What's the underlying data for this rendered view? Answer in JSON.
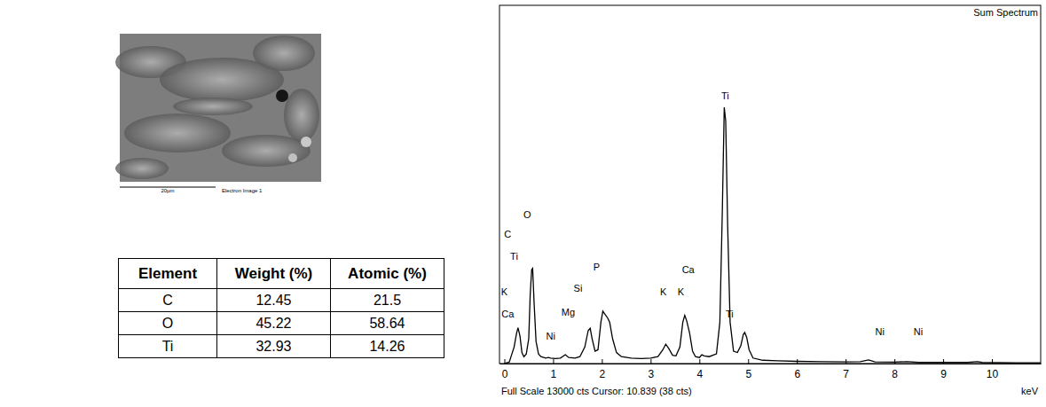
{
  "image": {
    "scale_bar": "20µm",
    "caption": "Electron Image 1"
  },
  "table": {
    "header": [
      "Element",
      "Weight (%)",
      "Atomic (%)"
    ],
    "rows": [
      [
        "C",
        "12.45",
        "21.5"
      ],
      [
        "O",
        "45.22",
        "58.64"
      ],
      [
        "Ti",
        "32.93",
        "14.26"
      ]
    ]
  },
  "chart_data": {
    "type": "line",
    "title": "Sum Spectrum",
    "xlabel": "keV",
    "caption": "Full Scale 13000 cts Cursor: 10.839 (38 cts)",
    "color": "#000000",
    "tick_labels": "x",
    "grid": false,
    "xlim": [
      -0.1,
      11.0
    ],
    "xticks": [
      0,
      1,
      2,
      3,
      4,
      5,
      6,
      7,
      8,
      9,
      10
    ],
    "ylim": [
      0,
      13000
    ],
    "x": [
      0.0,
      0.1,
      0.2,
      0.25,
      0.28,
      0.32,
      0.36,
      0.4,
      0.45,
      0.5,
      0.53,
      0.56,
      0.58,
      0.61,
      0.65,
      0.7,
      0.75,
      0.85,
      0.9,
      0.95,
      1.05,
      1.15,
      1.25,
      1.32,
      1.45,
      1.55,
      1.65,
      1.72,
      1.76,
      1.8,
      1.86,
      1.92,
      1.98,
      2.02,
      2.06,
      2.12,
      2.16,
      2.22,
      2.3,
      2.4,
      2.6,
      2.8,
      3.0,
      3.15,
      3.25,
      3.31,
      3.37,
      3.45,
      3.52,
      3.6,
      3.66,
      3.7,
      3.74,
      3.8,
      3.86,
      3.92,
      4.0,
      4.05,
      4.1,
      4.2,
      4.35,
      4.42,
      4.47,
      4.51,
      4.54,
      4.58,
      4.63,
      4.7,
      4.78,
      4.85,
      4.9,
      4.93,
      4.97,
      5.02,
      5.1,
      5.3,
      5.6,
      6.0,
      6.5,
      7.0,
      7.3,
      7.47,
      7.6,
      8.0,
      8.26,
      8.5,
      9.0,
      9.5,
      9.7,
      9.8,
      10.5,
      11.0
    ],
    "values": [
      0,
      50,
      600,
      1100,
      1300,
      1000,
      400,
      250,
      350,
      900,
      2500,
      3400,
      3450,
      2200,
      800,
      350,
      250,
      200,
      220,
      200,
      180,
      200,
      320,
      220,
      200,
      250,
      600,
      1200,
      1280,
      900,
      450,
      500,
      1500,
      1900,
      1800,
      1650,
      1500,
      900,
      400,
      250,
      200,
      180,
      200,
      250,
      500,
      700,
      550,
      300,
      280,
      600,
      1500,
      1750,
      1550,
      1100,
      450,
      250,
      220,
      320,
      280,
      250,
      350,
      1500,
      5500,
      9300,
      8800,
      5000,
      1500,
      450,
      400,
      650,
      1050,
      1130,
      950,
      500,
      200,
      120,
      100,
      80,
      70,
      60,
      70,
      130,
      60,
      50,
      70,
      40,
      40,
      40,
      70,
      40,
      30,
      30
    ],
    "annotations": [
      {
        "text": "O",
        "x": 0.47,
        "y": 5360
      },
      {
        "text": "C",
        "x": 0.07,
        "y": 4655
      },
      {
        "text": "Ti",
        "x": 0.2,
        "y": 3850
      },
      {
        "text": "K",
        "x": 0.0,
        "y": 2570
      },
      {
        "text": "Ca",
        "x": 0.07,
        "y": 1765
      },
      {
        "text": "Ni",
        "x": 0.95,
        "y": 960
      },
      {
        "text": "Mg",
        "x": 1.31,
        "y": 1830
      },
      {
        "text": "Si",
        "x": 1.51,
        "y": 2700
      },
      {
        "text": "P",
        "x": 1.89,
        "y": 3470
      },
      {
        "text": "K",
        "x": 3.26,
        "y": 2570
      },
      {
        "text": "Ca",
        "x": 3.77,
        "y": 3370
      },
      {
        "text": "K",
        "x": 3.62,
        "y": 2570
      },
      {
        "text": "Ti",
        "x": 4.53,
        "y": 9690
      },
      {
        "text": "Ti",
        "x": 4.62,
        "y": 1765
      },
      {
        "text": "Ni",
        "x": 7.7,
        "y": 1120
      },
      {
        "text": "Ni",
        "x": 8.49,
        "y": 1120
      }
    ]
  }
}
